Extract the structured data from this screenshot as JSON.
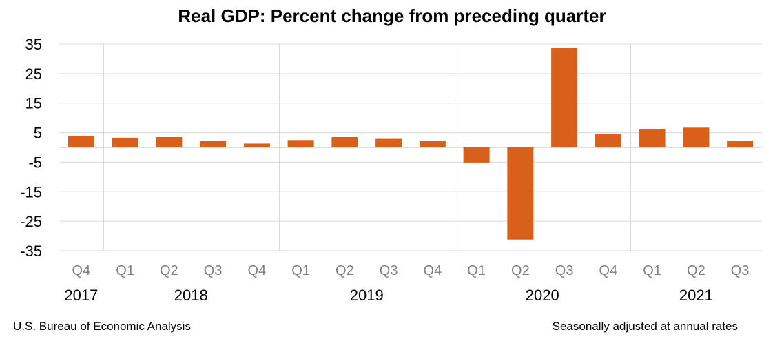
{
  "chart_data": {
    "type": "bar",
    "title": "Real GDP:  Percent change from preceding quarter",
    "xlabel": "",
    "ylabel": "",
    "categories": [
      "Q4",
      "Q1",
      "Q2",
      "Q3",
      "Q4",
      "Q1",
      "Q2",
      "Q3",
      "Q4",
      "Q1",
      "Q2",
      "Q3",
      "Q4",
      "Q1",
      "Q2",
      "Q3"
    ],
    "years": [
      {
        "label": "2017",
        "from": 0,
        "to": 0
      },
      {
        "label": "2018",
        "from": 1,
        "to": 4
      },
      {
        "label": "2019",
        "from": 5,
        "to": 8
      },
      {
        "label": "2020",
        "from": 9,
        "to": 12
      },
      {
        "label": "2021",
        "from": 13,
        "to": 15
      }
    ],
    "values": [
      3.9,
      3.3,
      3.5,
      2.1,
      1.3,
      2.5,
      3.5,
      2.9,
      2.1,
      -5.1,
      -31.2,
      33.8,
      4.5,
      6.3,
      6.7,
      2.3
    ],
    "ylim": [
      -35,
      35
    ],
    "yticks": [
      35,
      25,
      15,
      5,
      -5,
      -15,
      -25,
      -35
    ],
    "ytick_labels": [
      "35",
      "25",
      "15",
      "5",
      "-5",
      "-15",
      "-25",
      "-35"
    ],
    "grid": true,
    "bar_color": "#D9601A"
  },
  "notes": {
    "source": "U.S. Bureau of Economic Analysis",
    "adjustment": "Seasonally adjusted at annual rates"
  }
}
